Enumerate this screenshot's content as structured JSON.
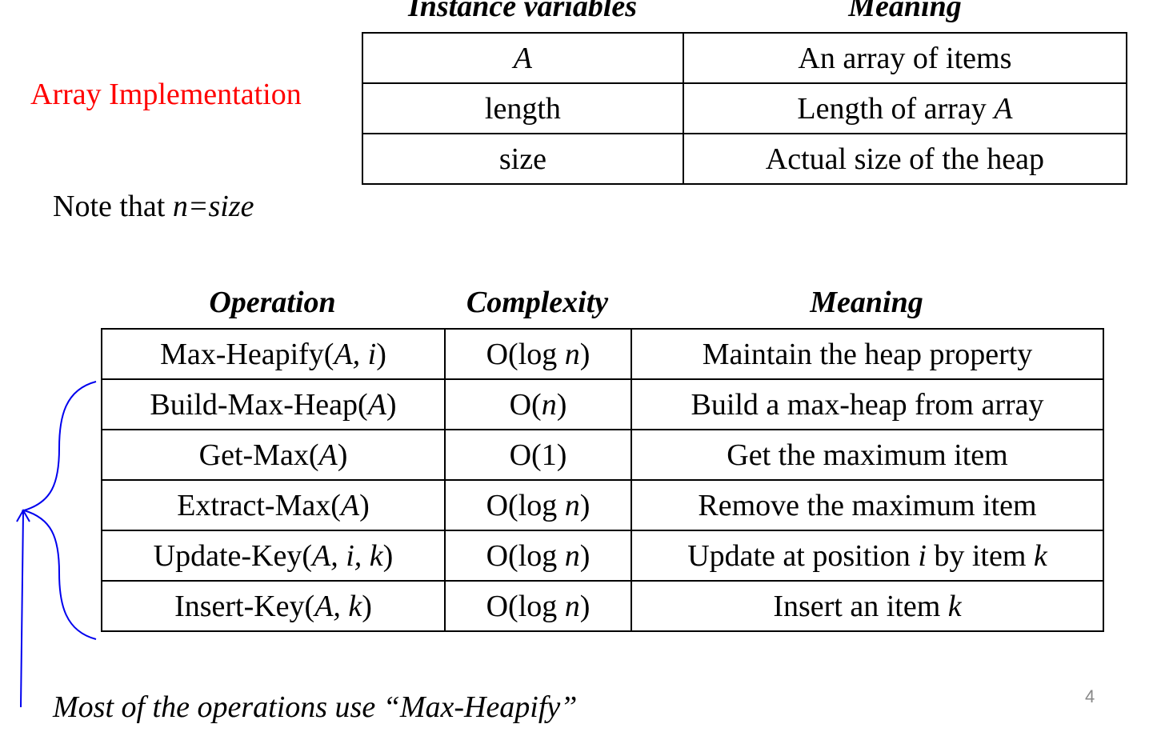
{
  "array_impl_label": "Array Implementation",
  "instance_table": {
    "headers": [
      "Instance variables",
      "Meaning"
    ],
    "rows": [
      {
        "var": "A",
        "meaning": "An array of items"
      },
      {
        "var": "length",
        "meaning_prefix": "Length of array ",
        "meaning_var": "A"
      },
      {
        "var": "size",
        "meaning": "Actual size of the heap"
      }
    ]
  },
  "note": {
    "prefix": "Note that ",
    "expr": "n=size"
  },
  "operations_table": {
    "headers": [
      "Operation",
      "Complexity",
      "Meaning"
    ],
    "rows": [
      {
        "op_name": "Max-Heapify",
        "op_args": "A, i",
        "complexity_prefix": "O(log ",
        "complexity_var": "n",
        "complexity_suffix": ")",
        "meaning": "Maintain the heap property"
      },
      {
        "op_name": "Build-Max-Heap",
        "op_args": "A",
        "complexity_prefix": "O(",
        "complexity_var": "n",
        "complexity_suffix": ")",
        "meaning": "Build a max-heap from array"
      },
      {
        "op_name": "Get-Max",
        "op_args": "A",
        "complexity_prefix": "O(1)",
        "complexity_var": "",
        "complexity_suffix": "",
        "meaning": "Get the maximum item"
      },
      {
        "op_name": "Extract-Max",
        "op_args": "A",
        "complexity_prefix": "O(log ",
        "complexity_var": "n",
        "complexity_suffix": ")",
        "meaning": "Remove the maximum item"
      },
      {
        "op_name": "Update-Key",
        "op_args": "A, i, k",
        "complexity_prefix": "O(log ",
        "complexity_var": "n",
        "complexity_suffix": ")",
        "meaning_parts": [
          "Update at position ",
          "i",
          " by item ",
          "k"
        ]
      },
      {
        "op_name": "Insert-Key",
        "op_args": "A, k",
        "complexity_prefix": "O(log ",
        "complexity_var": "n",
        "complexity_suffix": ")",
        "meaning_parts": [
          "Insert an item ",
          "k"
        ]
      }
    ]
  },
  "footer_note": "Most of the operations use “Max-Heapify”",
  "page_number": "4",
  "colors": {
    "title_red": "#ff0000",
    "annotation_blue": "#0000ee",
    "page_number_gray": "#888888"
  }
}
